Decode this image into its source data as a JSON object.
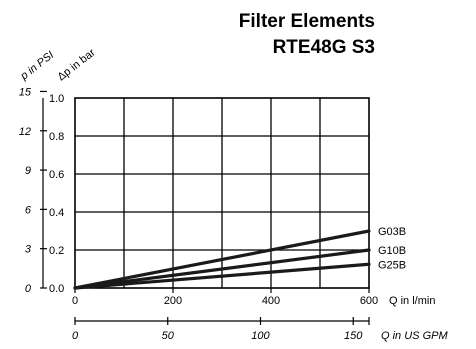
{
  "chart_data": {
    "type": "line",
    "title": "Filter Elements",
    "subtitle": "RTE48G S3",
    "ylabel_psi": "p in PSI",
    "ylabel_bar": "Δp in bar",
    "xlabel": "Q in l/min",
    "xlabel_gpm": "Q in US GPM",
    "grid": true,
    "xlim": [
      0,
      600
    ],
    "ylim": [
      0,
      1.0
    ],
    "x_ticks": [
      "0",
      "200",
      "400",
      "600"
    ],
    "y_ticks_bar": [
      "0.0",
      "0.2",
      "0.4",
      "0.6",
      "0.8",
      "1.0"
    ],
    "y_ticks_psi": [
      "0",
      "3",
      "6",
      "9",
      "12",
      "15"
    ],
    "gpm_ticks": [
      "0",
      "50",
      "100",
      "150"
    ],
    "gpm_lim": [
      0,
      158.5
    ],
    "psi_lim": [
      0,
      14.5
    ],
    "series": [
      {
        "name": "G03B",
        "x": [
          0,
          600
        ],
        "y": [
          0,
          0.3
        ]
      },
      {
        "name": "G10B",
        "x": [
          0,
          600
        ],
        "y": [
          0,
          0.2
        ]
      },
      {
        "name": "G25B",
        "x": [
          0,
          600
        ],
        "y": [
          0,
          0.125
        ]
      }
    ],
    "line_color": "#1a1a1a"
  }
}
